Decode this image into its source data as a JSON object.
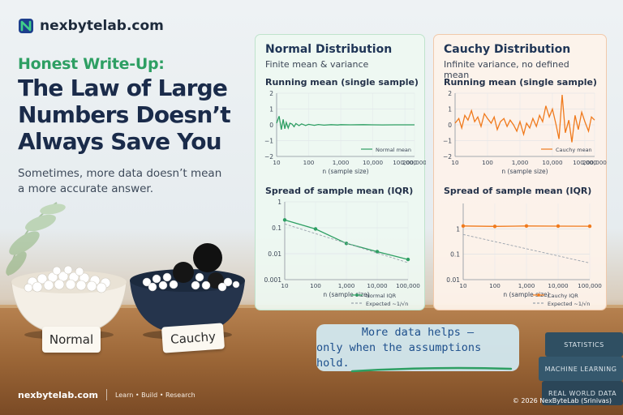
{
  "brand": {
    "name": "nexbytelab.com"
  },
  "hero": {
    "kicker": "Honest Write-Up:",
    "headline_lines": [
      "The Law of Large",
      "Numbers Doesn’t",
      "Always Save You"
    ],
    "sub_lines": [
      "Sometimes, more data doesn’t mean",
      "a more accurate answer."
    ]
  },
  "bowls": {
    "normal_label": "Normal",
    "cauchy_label": "Cauchy"
  },
  "panels": {
    "normal": {
      "title": "Normal Distribution",
      "subtitle": "Finite mean & variance"
    },
    "cauchy": {
      "title": "Cauchy Distribution",
      "subtitle": "Infinite variance, no defined mean"
    }
  },
  "note": {
    "lines": [
      "More data helps —",
      "only when the assumptions hold."
    ]
  },
  "books": [
    "STATISTICS",
    "MACHINE LEARNING",
    "REAL WORLD DATA"
  ],
  "footer": {
    "brand": "nexbytelab.com",
    "links": "Learn  •  Build  •  Research",
    "copyright": "© 2026 NexByteLab (Srinivas)"
  },
  "colors": {
    "green": "#2e9f63",
    "orange": "#f07a1c",
    "navy": "#1a2b4a",
    "dashed": "#9aa3ad"
  },
  "chart_data": [
    {
      "type": "line",
      "title": "Running mean (single sample)",
      "xlabel": "n (sample size)",
      "xscale": "log",
      "x_ticks": [
        10,
        100,
        1000,
        10000,
        100000,
        200000
      ],
      "x_tick_labels": [
        "10",
        "100",
        "1,000",
        "10,000",
        "100,000",
        "200,000"
      ],
      "y_ticks": [
        2,
        1,
        0,
        -1,
        -2
      ],
      "y_tick_labels": [
        "2",
        "1",
        "0",
        "−1",
        "−2"
      ],
      "ylim": [
        -2,
        2
      ],
      "legend": "bottom-right",
      "series": [
        {
          "name": "Normal mean",
          "color": "#2e9f63",
          "x": [
            10,
            12,
            14,
            16,
            18,
            20,
            23,
            26,
            30,
            35,
            40,
            50,
            60,
            80,
            100,
            150,
            200,
            300,
            500,
            800,
            1000,
            2000,
            5000,
            10000,
            20000,
            50000,
            100000,
            200000
          ],
          "y": [
            0.1,
            0.55,
            -0.3,
            0.35,
            -0.25,
            0.15,
            -0.2,
            0.1,
            0.05,
            -0.12,
            0.08,
            -0.05,
            0.06,
            -0.04,
            0.03,
            -0.03,
            0.02,
            -0.02,
            0.01,
            -0.01,
            0.01,
            0.0,
            0.01,
            0.0,
            -0.005,
            0.0,
            0.0,
            0.0
          ]
        }
      ]
    },
    {
      "type": "line",
      "title": "Spread of sample mean (IQR)",
      "xlabel": "n (sample size)",
      "xscale": "log",
      "yscale": "log",
      "x_ticks": [
        10,
        100,
        1000,
        10000,
        100000
      ],
      "x_tick_labels": [
        "10",
        "100",
        "1,000",
        "10,000",
        "100,000"
      ],
      "y_ticks": [
        1,
        0.1,
        0.01,
        0.001
      ],
      "y_tick_labels": [
        "1",
        "0.1",
        "0.01",
        "0.001"
      ],
      "ylim": [
        0.001,
        1
      ],
      "legend": "bottom-right",
      "series": [
        {
          "name": "Normal IQR",
          "color": "#2e9f63",
          "style": "solid-markers",
          "x": [
            10,
            100,
            1000,
            10000,
            100000
          ],
          "y": [
            0.2,
            0.09,
            0.025,
            0.012,
            0.006
          ]
        },
        {
          "name": "Expected ~1/√n",
          "color": "#9aa3ad",
          "style": "dashed",
          "x": [
            10,
            100000
          ],
          "y": [
            0.14,
            0.0045
          ]
        }
      ]
    },
    {
      "type": "line",
      "title": "Running mean (single sample)",
      "xlabel": "n (sample size)",
      "xscale": "log",
      "x_ticks": [
        10,
        100,
        1000,
        10000,
        100000,
        200000
      ],
      "x_tick_labels": [
        "10",
        "100",
        "1,000",
        "10,000",
        "100,000",
        "200,000"
      ],
      "y_ticks": [
        2,
        1,
        0,
        -1,
        -2
      ],
      "y_tick_labels": [
        "2",
        "1",
        "0",
        "−1",
        "−2"
      ],
      "ylim": [
        -2,
        2
      ],
      "legend": "bottom-right",
      "series": [
        {
          "name": "Cauchy mean",
          "color": "#f07a1c",
          "x": [
            10,
            13,
            16,
            20,
            25,
            32,
            40,
            50,
            63,
            80,
            100,
            130,
            160,
            200,
            250,
            320,
            400,
            500,
            630,
            800,
            1000,
            1300,
            1600,
            2000,
            2500,
            3200,
            4000,
            5000,
            6300,
            8000,
            10000,
            13000,
            16000,
            20000,
            25000,
            32000,
            40000,
            50000,
            63000,
            80000,
            100000,
            130000,
            160000,
            200000
          ],
          "y": [
            0.1,
            0.4,
            -0.2,
            0.6,
            0.3,
            0.9,
            0.2,
            0.5,
            -0.1,
            0.7,
            0.4,
            0.1,
            0.5,
            -0.3,
            0.2,
            0.4,
            -0.1,
            0.3,
            0.0,
            -0.4,
            0.2,
            -0.6,
            0.1,
            -0.2,
            0.4,
            -0.1,
            0.6,
            0.2,
            1.2,
            0.5,
            1.0,
            0.0,
            -0.9,
            1.9,
            -0.5,
            0.3,
            -1.1,
            0.6,
            -0.3,
            0.8,
            0.2,
            -0.4,
            0.5,
            0.3
          ]
        }
      ]
    },
    {
      "type": "line",
      "title": "Spread of sample mean (IQR)",
      "xlabel": "n (sample size)",
      "xscale": "log",
      "yscale": "log",
      "x_ticks": [
        10,
        100,
        1000,
        10000,
        100000
      ],
      "x_tick_labels": [
        "10",
        "100",
        "1,000",
        "10,000",
        "100,000"
      ],
      "y_ticks": [
        1,
        0.1,
        0.01
      ],
      "y_tick_labels": [
        "1",
        "0.1",
        "0.01"
      ],
      "ylim": [
        0.01,
        10
      ],
      "legend": "bottom-right",
      "series": [
        {
          "name": "Cauchy IQR",
          "color": "#f07a1c",
          "style": "solid-markers",
          "x": [
            10,
            100,
            1000,
            10000,
            100000
          ],
          "y": [
            1.3,
            1.25,
            1.3,
            1.28,
            1.27
          ]
        },
        {
          "name": "Expected ~1/√n",
          "color": "#9aa3ad",
          "style": "dashed",
          "x": [
            10,
            100000
          ],
          "y": [
            0.6,
            0.045
          ]
        }
      ]
    }
  ]
}
